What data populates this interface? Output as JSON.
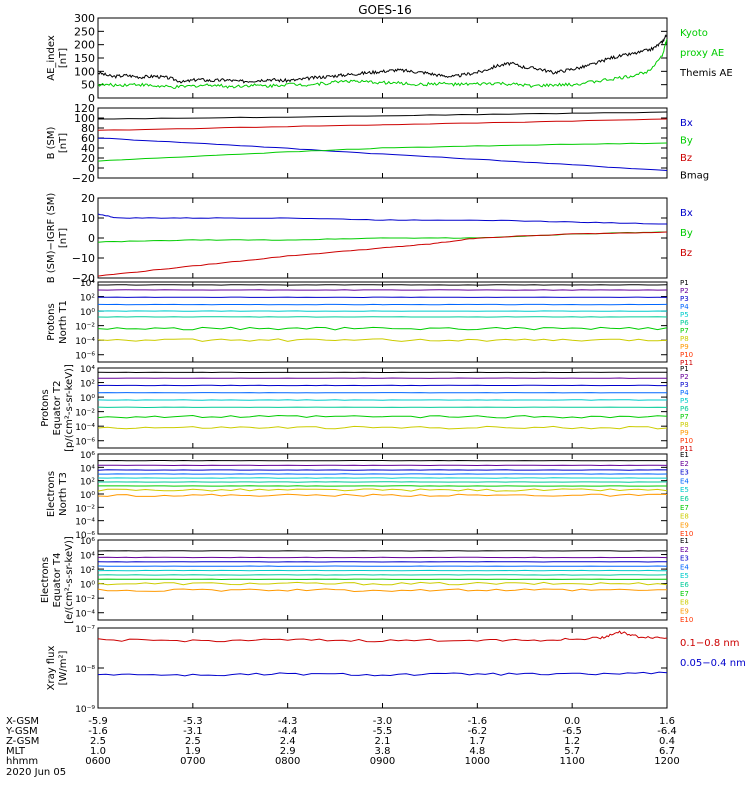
{
  "title": "GOES-16",
  "colors": {
    "black": "#000000",
    "green": "#00cc00",
    "blue": "#0000cc",
    "red": "#cc0000",
    "p_colors": [
      "#000000",
      "#660099",
      "#0000cc",
      "#0066ff",
      "#00cccc",
      "#00cc99",
      "#00cc00",
      "#cccc00",
      "#ff9900",
      "#ff3300",
      "#cc0000"
    ]
  },
  "x_axis": {
    "range": [
      600,
      1200
    ],
    "tick_positions": [
      600,
      700,
      800,
      900,
      1000,
      1100,
      1200
    ],
    "rows": [
      {
        "label": "X-GSM",
        "values": [
          "-5.9",
          "-5.3",
          "-4.3",
          "-3.0",
          "-1.6",
          "0.0",
          "1.6"
        ]
      },
      {
        "label": "Y-GSM",
        "values": [
          "-1.6",
          "-3.1",
          "-4.4",
          "-5.5",
          "-6.2",
          "-6.5",
          "-6.4"
        ]
      },
      {
        "label": "Z-GSM",
        "values": [
          "2.5",
          "2.5",
          "2.4",
          "2.1",
          "1.7",
          "1.2",
          "0.4"
        ]
      },
      {
        "label": "MLT",
        "values": [
          "1.0",
          "1.9",
          "2.9",
          "3.8",
          "4.8",
          "5.7",
          "6.7"
        ]
      },
      {
        "label": "hhmm",
        "values": [
          "0600",
          "0700",
          "0800",
          "0900",
          "1000",
          "1100",
          "1200"
        ]
      }
    ],
    "date": "2020 Jun 05"
  },
  "chart_data": [
    {
      "type": "line",
      "ylabel": [
        "AE_index",
        "[nT]"
      ],
      "ylim": [
        0,
        300
      ],
      "yticks": [
        "0",
        "50",
        "100",
        "150",
        "200",
        "250",
        "300"
      ],
      "legend": [
        {
          "text": "Kyoto",
          "color": "green"
        },
        {
          "text": "proxy AE",
          "color": "green"
        },
        {
          "text": "Themis AE",
          "color": "black"
        }
      ],
      "series": [
        {
          "name": "Themis AE",
          "color": "black",
          "x": [
            600,
            615,
            630,
            645,
            660,
            675,
            690,
            705,
            720,
            735,
            750,
            765,
            780,
            795,
            810,
            825,
            840,
            855,
            870,
            885,
            900,
            915,
            930,
            945,
            960,
            975,
            990,
            1005,
            1020,
            1035,
            1050,
            1065,
            1080,
            1095,
            1110,
            1125,
            1140,
            1155,
            1170,
            1185,
            1195,
            1200
          ],
          "values": [
            95,
            80,
            85,
            78,
            82,
            75,
            60,
            70,
            65,
            68,
            62,
            65,
            70,
            65,
            68,
            75,
            80,
            85,
            90,
            95,
            100,
            105,
            100,
            95,
            85,
            80,
            90,
            100,
            120,
            130,
            115,
            110,
            95,
            105,
            115,
            130,
            150,
            160,
            170,
            185,
            210,
            240
          ]
        },
        {
          "name": "Kyoto proxy AE",
          "color": "green",
          "x": [
            600,
            620,
            640,
            660,
            680,
            700,
            720,
            740,
            760,
            780,
            800,
            820,
            840,
            860,
            880,
            900,
            920,
            940,
            960,
            980,
            1000,
            1020,
            1040,
            1060,
            1080,
            1100,
            1120,
            1140,
            1160,
            1180,
            1195,
            1200
          ],
          "values": [
            50,
            48,
            52,
            45,
            40,
            45,
            50,
            42,
            48,
            45,
            52,
            50,
            55,
            65,
            60,
            58,
            55,
            50,
            55,
            50,
            52,
            55,
            50,
            45,
            48,
            50,
            60,
            70,
            80,
            100,
            160,
            220
          ]
        }
      ]
    },
    {
      "type": "line",
      "ylabel": [
        "B (SM)",
        "[nT]"
      ],
      "ylim": [
        -20,
        120
      ],
      "yticks": [
        "−20",
        "0",
        "20",
        "40",
        "60",
        "80",
        "100",
        "120"
      ],
      "legend": [
        {
          "text": "Bx",
          "color": "blue"
        },
        {
          "text": "By",
          "color": "green"
        },
        {
          "text": "Bz",
          "color": "red"
        },
        {
          "text": "Bmag",
          "color": "black"
        }
      ],
      "series": [
        {
          "name": "Bmag",
          "color": "black",
          "x": [
            600,
            800,
            1000,
            1200
          ],
          "values": [
            98,
            102,
            107,
            112
          ]
        },
        {
          "name": "Bz",
          "color": "red",
          "x": [
            600,
            800,
            1000,
            1200
          ],
          "values": [
            75,
            83,
            90,
            98
          ]
        },
        {
          "name": "Bx",
          "color": "blue",
          "x": [
            600,
            750,
            900,
            1050,
            1200
          ],
          "values": [
            60,
            45,
            28,
            12,
            -5
          ]
        },
        {
          "name": "By",
          "color": "green",
          "x": [
            600,
            750,
            900,
            1050,
            1200
          ],
          "values": [
            14,
            28,
            40,
            46,
            50
          ]
        }
      ]
    },
    {
      "type": "line",
      "ylabel": [
        "B (SM)−IGRF (SM)",
        "[nT]"
      ],
      "ylim": [
        -20,
        20
      ],
      "yticks": [
        "−20",
        "−10",
        "0",
        "10",
        "20"
      ],
      "legend": [
        {
          "text": "Bx",
          "color": "blue"
        },
        {
          "text": "By",
          "color": "green"
        },
        {
          "text": "Bz",
          "color": "red"
        }
      ],
      "series": [
        {
          "name": "Bx",
          "color": "blue",
          "x": [
            600,
            620,
            700,
            800,
            900,
            1000,
            1100,
            1200
          ],
          "values": [
            12,
            10,
            10,
            10,
            9,
            9,
            8,
            7
          ]
        },
        {
          "name": "By",
          "color": "green",
          "x": [
            600,
            700,
            800,
            900,
            1000,
            1100,
            1200
          ],
          "values": [
            -2,
            -1,
            -1,
            0,
            0,
            2,
            3
          ]
        },
        {
          "name": "Bz",
          "color": "red",
          "x": [
            600,
            700,
            800,
            900,
            950,
            1000,
            1100,
            1200
          ],
          "values": [
            -19,
            -14,
            -9,
            -5,
            -3,
            0,
            2,
            3
          ]
        }
      ]
    },
    {
      "type": "line",
      "log": true,
      "ylabel": [
        "Protons",
        "North T1"
      ],
      "ylim": [
        -7,
        4
      ],
      "yticks": [
        "10⁴",
        "10²",
        "10⁰",
        "10⁻²",
        "10⁻⁴",
        "10⁻⁶"
      ],
      "ytick_exps": [
        4,
        2,
        0,
        -2,
        -4,
        -6
      ],
      "legend": [
        {
          "text": "P1"
        },
        {
          "text": "P2"
        },
        {
          "text": "P3"
        },
        {
          "text": "P4"
        },
        {
          "text": "P5"
        },
        {
          "text": "P6"
        },
        {
          "text": "P7"
        },
        {
          "text": "P8"
        },
        {
          "text": "P9"
        },
        {
          "text": "P10"
        },
        {
          "text": "P11"
        }
      ],
      "levels": [
        3.6,
        2.9,
        1.9,
        0.9,
        0.0,
        -0.8,
        -2.4,
        -4.0
      ]
    },
    {
      "type": "line",
      "log": true,
      "ylabel": [
        "Protons",
        "Equator T2",
        "[p/(cm²-s-sr-keV)]"
      ],
      "ylim": [
        -7,
        4
      ],
      "yticks": [
        "10⁴",
        "10²",
        "10⁰",
        "10⁻²",
        "10⁻⁴",
        "10⁻⁶"
      ],
      "ytick_exps": [
        4,
        2,
        0,
        -2,
        -4,
        -6
      ],
      "legend": [
        {
          "text": "P1"
        },
        {
          "text": "P2"
        },
        {
          "text": "P3"
        },
        {
          "text": "P4"
        },
        {
          "text": "P5"
        },
        {
          "text": "P6"
        },
        {
          "text": "P7"
        },
        {
          "text": "P8"
        },
        {
          "text": "P9"
        },
        {
          "text": "P10"
        },
        {
          "text": "P11"
        }
      ],
      "levels": [
        3.4,
        2.6,
        1.6,
        0.6,
        -0.4,
        -1.4,
        -2.7,
        -4.2
      ]
    },
    {
      "type": "line",
      "log": true,
      "ylabel": [
        "Electrons",
        "North T3"
      ],
      "ylim": [
        -6,
        6
      ],
      "yticks": [
        "10⁶",
        "10⁴",
        "10²",
        "10⁰",
        "10⁻²",
        "10⁻⁴",
        "10⁻⁶"
      ],
      "ytick_exps": [
        6,
        4,
        2,
        0,
        -2,
        -4,
        -6
      ],
      "legend": [
        {
          "text": "E1"
        },
        {
          "text": "E2"
        },
        {
          "text": "E3"
        },
        {
          "text": "E4"
        },
        {
          "text": "E5"
        },
        {
          "text": "E6"
        },
        {
          "text": "E7"
        },
        {
          "text": "E8"
        },
        {
          "text": "E9"
        },
        {
          "text": "E10"
        }
      ],
      "levels": [
        5.0,
        4.3,
        3.6,
        3.0,
        2.4,
        1.8,
        1.2,
        0.6,
        -0.2
      ]
    },
    {
      "type": "line",
      "log": true,
      "ylabel": [
        "Electrons",
        "Equator T4",
        "[e/(cm²-s-sr-keV)]"
      ],
      "ylim": [
        -5,
        6
      ],
      "yticks": [
        "10⁶",
        "10⁴",
        "10²",
        "10⁰",
        "10⁻²",
        "10⁻⁴"
      ],
      "ytick_exps": [
        6,
        4,
        2,
        0,
        -2,
        -4
      ],
      "legend": [
        {
          "text": "E1"
        },
        {
          "text": "E2"
        },
        {
          "text": "E3"
        },
        {
          "text": "E4"
        },
        {
          "text": "E5"
        },
        {
          "text": "E6"
        },
        {
          "text": "E7"
        },
        {
          "text": "E8"
        },
        {
          "text": "E9"
        },
        {
          "text": "E10"
        }
      ],
      "levels": [
        4.5,
        3.6,
        3.0,
        2.4,
        1.8,
        1.2,
        0.6,
        0.0,
        -0.9
      ]
    },
    {
      "type": "line",
      "log": true,
      "ylabel": [
        "Xray flux",
        "[W/m²]"
      ],
      "ylim": [
        -9,
        -7
      ],
      "yticks": [
        "10⁻⁷",
        "10⁻⁸",
        "10⁻⁹"
      ],
      "ytick_exps": [
        -7,
        -8,
        -9
      ],
      "legend": [
        {
          "text": "0.1−0.8 nm",
          "color": "red"
        },
        {
          "text": "0.05−0.4 nm",
          "color": "blue"
        }
      ],
      "series": [
        {
          "name": "0.1−0.8 nm",
          "color": "red",
          "x": [
            600,
            700,
            800,
            900,
            1000,
            1080,
            1130,
            1150,
            1170,
            1200
          ],
          "values": [
            -7.3,
            -7.32,
            -7.3,
            -7.32,
            -7.3,
            -7.3,
            -7.25,
            -7.1,
            -7.22,
            -7.25
          ]
        },
        {
          "name": "0.05−0.4 nm",
          "color": "blue",
          "x": [
            600,
            700,
            800,
            900,
            1000,
            1100,
            1200
          ],
          "values": [
            -8.15,
            -8.18,
            -8.15,
            -8.17,
            -8.15,
            -8.16,
            -8.12
          ]
        }
      ]
    }
  ]
}
